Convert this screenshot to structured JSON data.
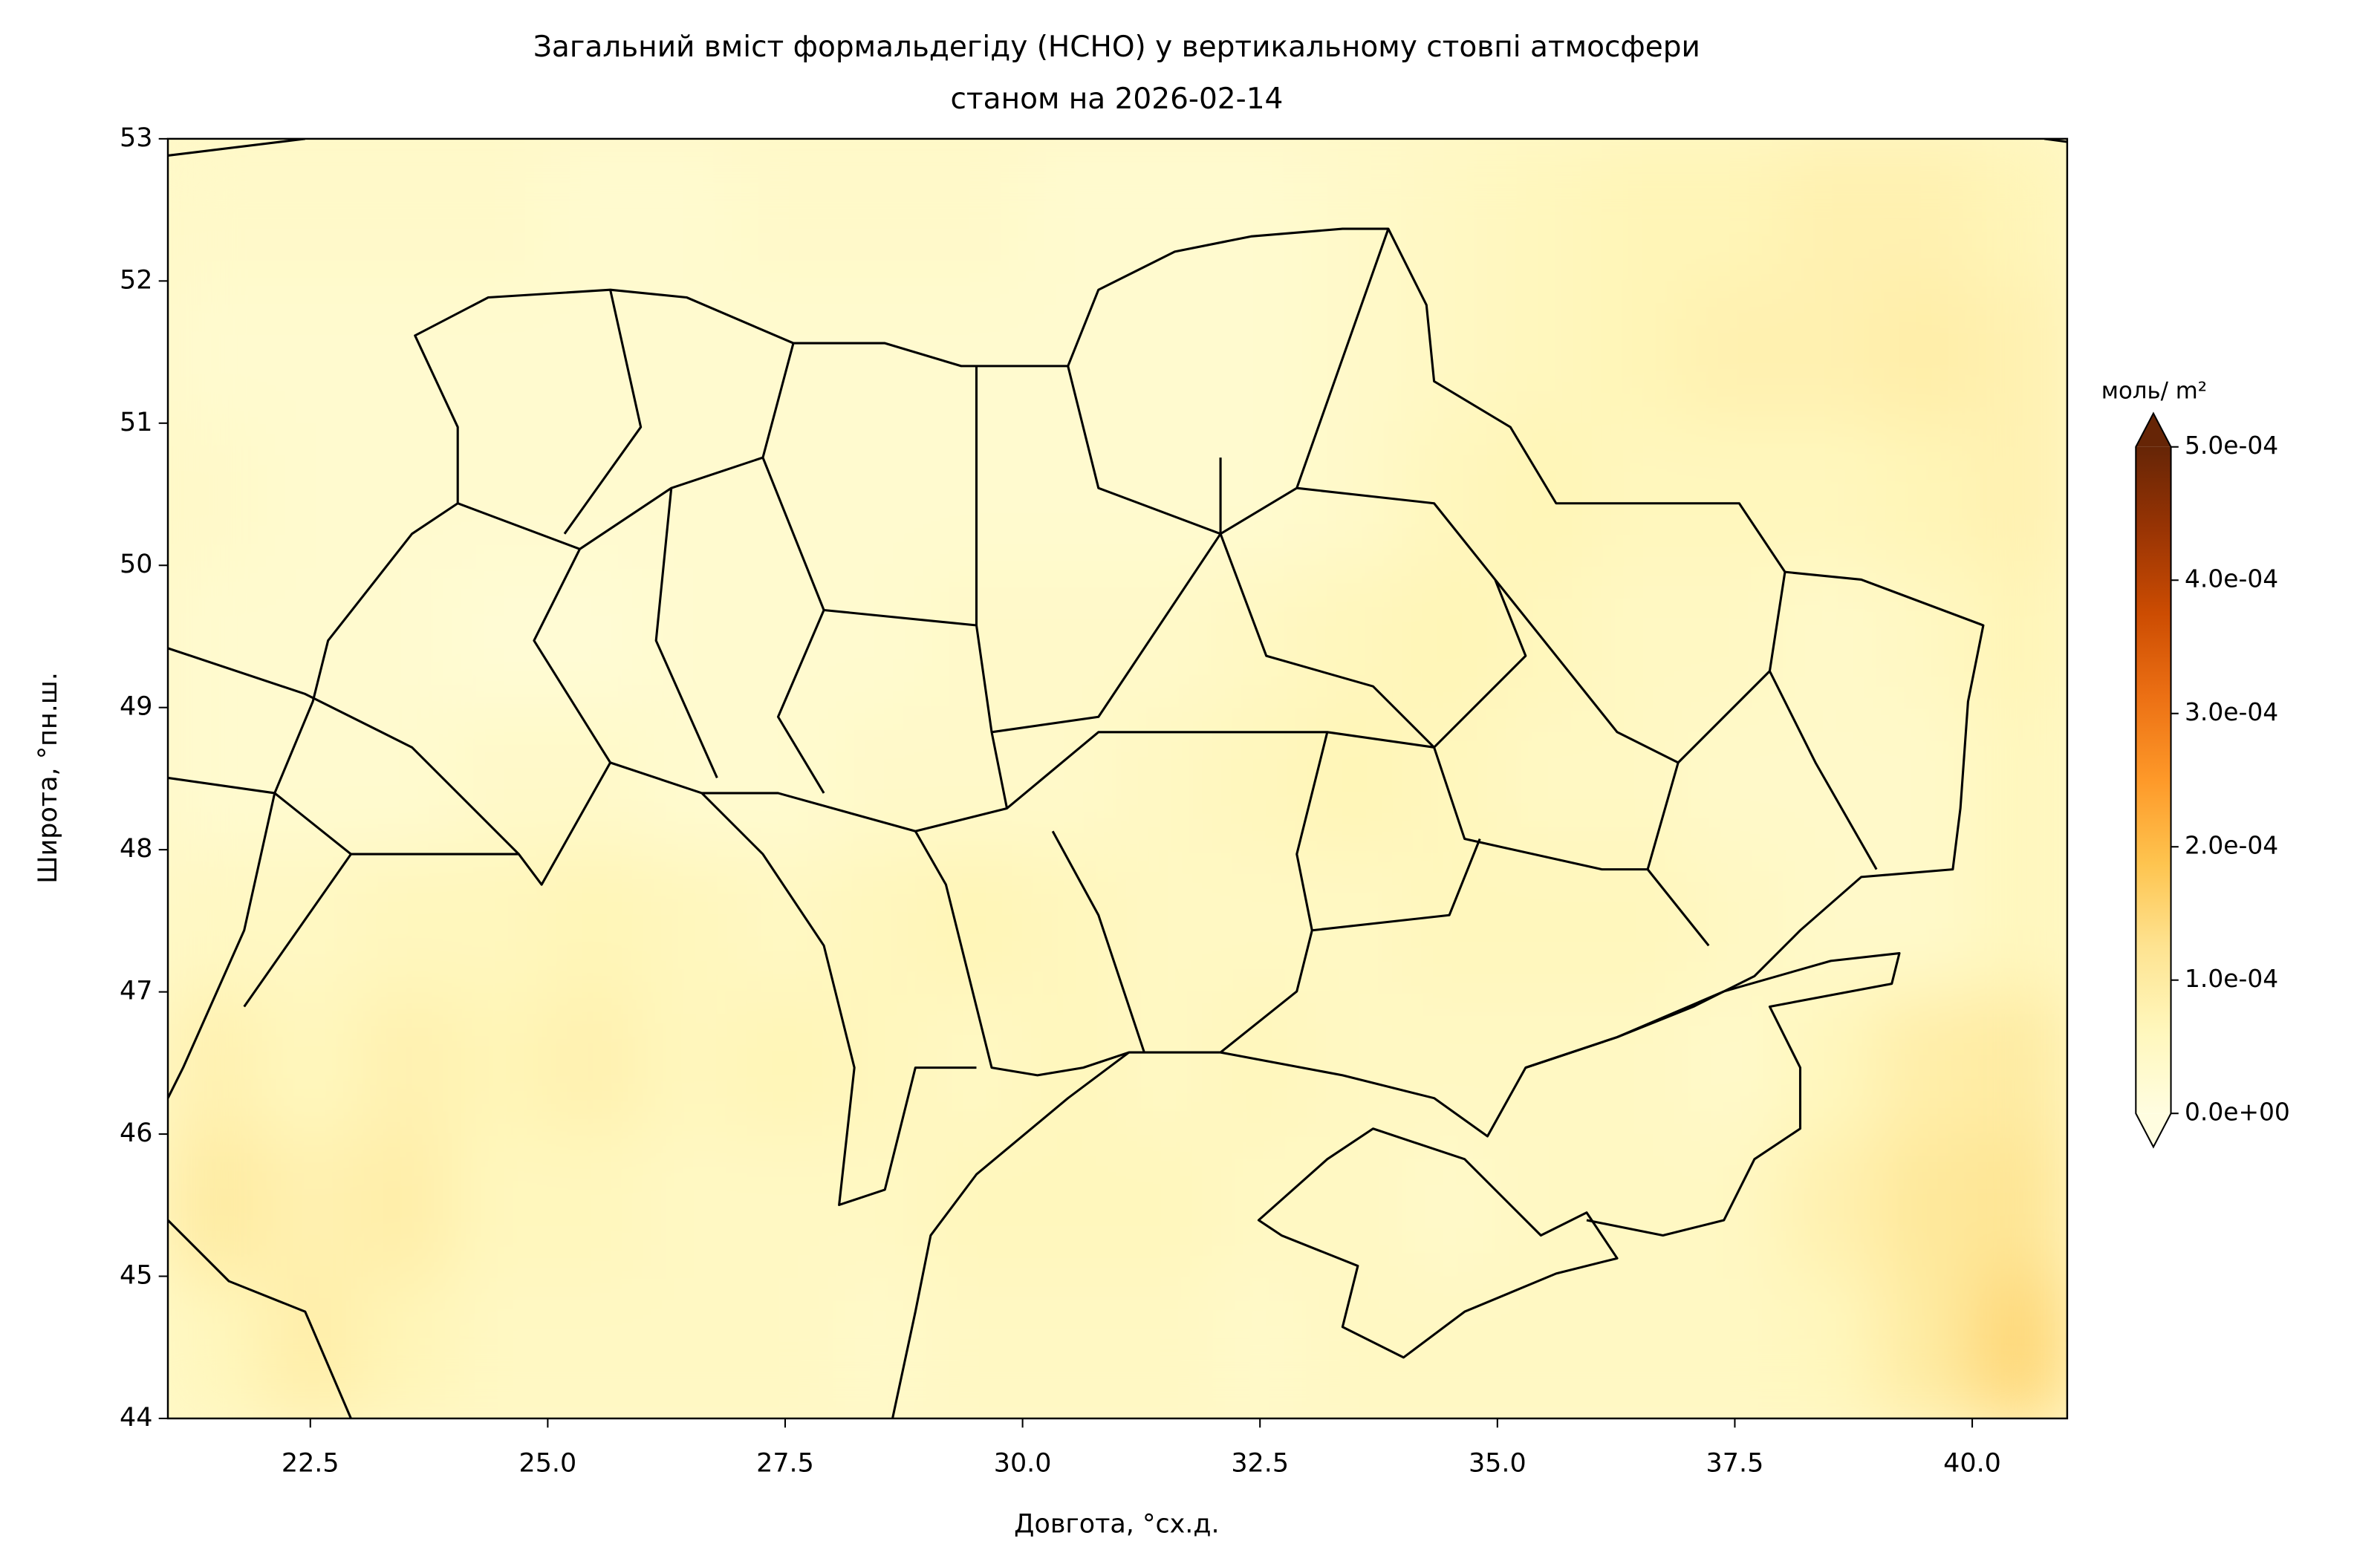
{
  "chart_data": {
    "type": "heatmap",
    "title": "Загальний вміст формальдегіду (HCHO) у вертикальному стовпі атмосфери",
    "subtitle": "станом на 2026-02-14",
    "x_label": "Довгота, °сх.д.",
    "y_label": "Широта,  °пн.ш.",
    "xlim": [
      21,
      41
    ],
    "ylim": [
      44,
      53
    ],
    "xticks": [
      22.5,
      {
        "value": 25,
        "label": "25.0"
      },
      27.5,
      {
        "value": 30,
        "label": "30.0"
      },
      32.5,
      {
        "value": 35,
        "label": "35.0"
      },
      37.5,
      {
        "value": 40,
        "label": "40.0"
      }
    ],
    "yticks": [
      44,
      45,
      46,
      47,
      48,
      49,
      50,
      51,
      52,
      53
    ],
    "colormap": "YlOrBr",
    "x": [
      21.5,
      22.5,
      23.5,
      24.5,
      25.5,
      26.5,
      27.5,
      28.5,
      29.5,
      30.5,
      31.5,
      32.5,
      33.5,
      34.5,
      35.5,
      36.5,
      37.5,
      38.5,
      39.5,
      40.5
    ],
    "y": [
      44.5,
      45.5,
      46.5,
      47.5,
      48.5,
      49.5,
      50.5,
      51.5,
      52.5
    ],
    "values": [
      [
        6e-05,
        9e-05,
        7e-05,
        5e-05,
        5e-05,
        5e-05,
        5e-05,
        4e-05,
        5e-05,
        5e-05,
        5e-05,
        4e-05,
        5e-05,
        5e-05,
        5e-05,
        5e-05,
        5e-05,
        6e-05,
        0.0001,
        0.00015
      ],
      [
        0.0001,
        8e-05,
        9e-05,
        6e-05,
        6e-05,
        5e-05,
        5e-05,
        5e-05,
        6e-05,
        6e-05,
        6e-05,
        5e-05,
        5e-05,
        4e-05,
        5e-05,
        5e-05,
        5e-05,
        8e-05,
        0.00011,
        0.00012
      ],
      [
        8e-05,
        6e-05,
        8e-05,
        7e-05,
        8e-05,
        6e-05,
        7e-05,
        6e-05,
        5e-05,
        6e-05,
        5e-05,
        6e-05,
        5e-05,
        5e-05,
        5e-05,
        5e-05,
        4e-05,
        6e-05,
        9e-05,
        0.0001
      ],
      [
        5e-05,
        5e-05,
        6e-05,
        6e-05,
        7e-05,
        6e-05,
        5e-05,
        6e-05,
        7e-05,
        6e-05,
        5e-05,
        5e-05,
        5e-05,
        6e-05,
        6e-05,
        6e-05,
        5e-05,
        4e-05,
        4e-05,
        6e-05
      ],
      [
        3e-05,
        3e-05,
        3e-05,
        4e-05,
        4e-05,
        3e-05,
        3e-05,
        4e-05,
        4e-05,
        4e-05,
        5e-05,
        6e-05,
        7e-05,
        6e-05,
        5e-05,
        5e-05,
        4e-05,
        4e-05,
        4e-05,
        6e-05
      ],
      [
        3e-05,
        3e-05,
        3e-05,
        2e-05,
        2e-05,
        3e-05,
        3e-05,
        3e-05,
        4e-05,
        4e-05,
        4e-05,
        5e-05,
        6e-05,
        7e-05,
        6e-05,
        5e-05,
        5e-05,
        4e-05,
        5e-05,
        7e-05
      ],
      [
        4e-05,
        3e-05,
        3e-05,
        3e-05,
        3e-05,
        3e-05,
        3e-05,
        3e-05,
        3e-05,
        3e-05,
        3e-05,
        3e-05,
        4e-05,
        6e-05,
        7e-05,
        6e-05,
        6e-05,
        6e-05,
        7e-05,
        8e-05
      ],
      [
        3e-05,
        3e-05,
        3e-05,
        3e-05,
        3e-05,
        3e-05,
        3e-05,
        3e-05,
        3e-05,
        3e-05,
        3e-05,
        3e-05,
        4e-05,
        5e-05,
        6e-05,
        7e-05,
        8e-05,
        8e-05,
        9e-05,
        8e-05
      ],
      [
        4e-05,
        4e-05,
        4e-05,
        4e-05,
        3e-05,
        3e-05,
        4e-05,
        4e-05,
        4e-05,
        3e-05,
        3e-05,
        3e-05,
        4e-05,
        5e-05,
        6e-05,
        7e-05,
        7e-05,
        8e-05,
        8e-05,
        7e-05
      ]
    ],
    "colorbar": {
      "label": "моль/ m²",
      "lim": [
        0,
        0.0005
      ],
      "extend": "both",
      "ticks": [
        {
          "value": 0,
          "label": "0.0e+00"
        },
        {
          "value": 0.0001,
          "label": "1.0e-04"
        },
        {
          "value": 0.0002,
          "label": "2.0e-04"
        },
        {
          "value": 0.0003,
          "label": "3.0e-04"
        },
        {
          "value": 0.0004,
          "label": "4.0e-04"
        },
        {
          "value": 0.0005,
          "label": "5.0e-04"
        }
      ]
    }
  }
}
